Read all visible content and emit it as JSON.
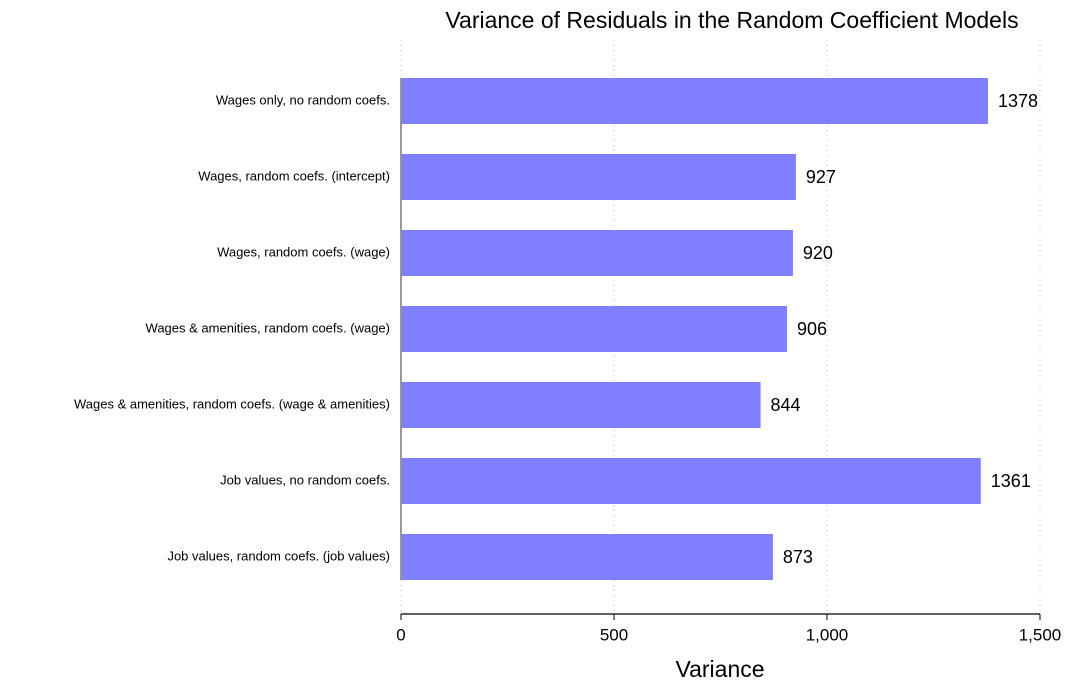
{
  "chart_data": {
    "type": "barh",
    "title": "Variance of Residuals in the Random Coefficient Models",
    "categories": [
      "Wages only, no random coefs.",
      "Wages, random coefs. (intercept)",
      "Wages, random coefs. (wage)",
      "Wages & amenities, random coefs. (wage)",
      "Wages & amenities, random coefs. (wage & amenities)",
      "Job values, no random coefs.",
      "Job values, random coefs. (job values)"
    ],
    "values": [
      1378,
      927,
      920,
      906,
      844,
      1361,
      873
    ],
    "color": "#8080ff",
    "xlabel": "Variance",
    "xlim": [
      0,
      1500
    ],
    "xticks": [
      0,
      500,
      {
        "value": 1000,
        "label": "1,000"
      },
      {
        "value": 1500,
        "label": "1,500"
      }
    ],
    "grid": true
  }
}
